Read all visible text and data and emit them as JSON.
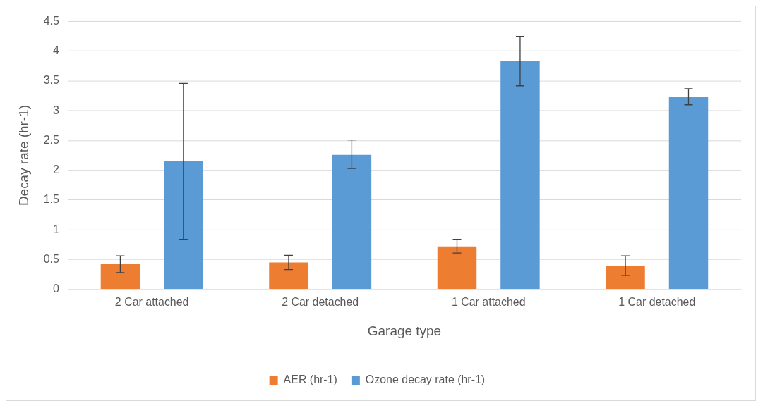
{
  "chart_data": {
    "type": "bar",
    "xlabel": "Garage type",
    "ylabel": "Decay rate (hr-1)",
    "categories": [
      "2 Car attached",
      "2 Car detached",
      "1 Car attached",
      "1 Car detached"
    ],
    "series": [
      {
        "name": "AER (hr-1)",
        "color": "#ed7d31",
        "values": [
          0.43,
          0.45,
          0.72,
          0.39
        ],
        "errors": [
          [
            0.28,
            0.56
          ],
          [
            0.33,
            0.57
          ],
          [
            0.61,
            0.84
          ],
          [
            0.23,
            0.56
          ]
        ]
      },
      {
        "name": "Ozone decay rate (hr-1)",
        "color": "#5b9bd5",
        "values": [
          2.15,
          2.26,
          3.84,
          3.24
        ],
        "errors": [
          [
            0.84,
            3.46
          ],
          [
            2.03,
            2.51
          ],
          [
            3.42,
            4.25
          ],
          [
            3.1,
            3.37
          ]
        ]
      }
    ],
    "ylim": [
      0,
      4.5
    ],
    "yticks": [
      0,
      0.5,
      1,
      1.5,
      2,
      2.5,
      3,
      3.5,
      4,
      4.5
    ],
    "grid": "y",
    "legend": "bottom"
  }
}
